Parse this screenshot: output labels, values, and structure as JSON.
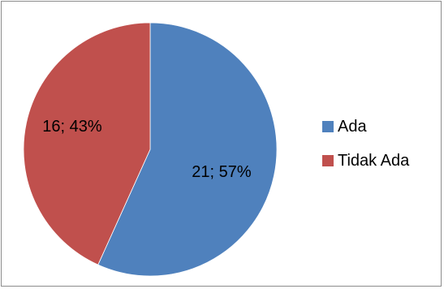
{
  "chart_data": {
    "type": "pie",
    "slices": [
      {
        "name": "Ada",
        "value": 21,
        "percent": 57,
        "label": "21; 57%",
        "color": "#4f81bd"
      },
      {
        "name": "Tidak Ada",
        "value": 16,
        "percent": 43,
        "label": "16; 43%",
        "color": "#c0504d"
      }
    ],
    "legend_position": "right"
  }
}
